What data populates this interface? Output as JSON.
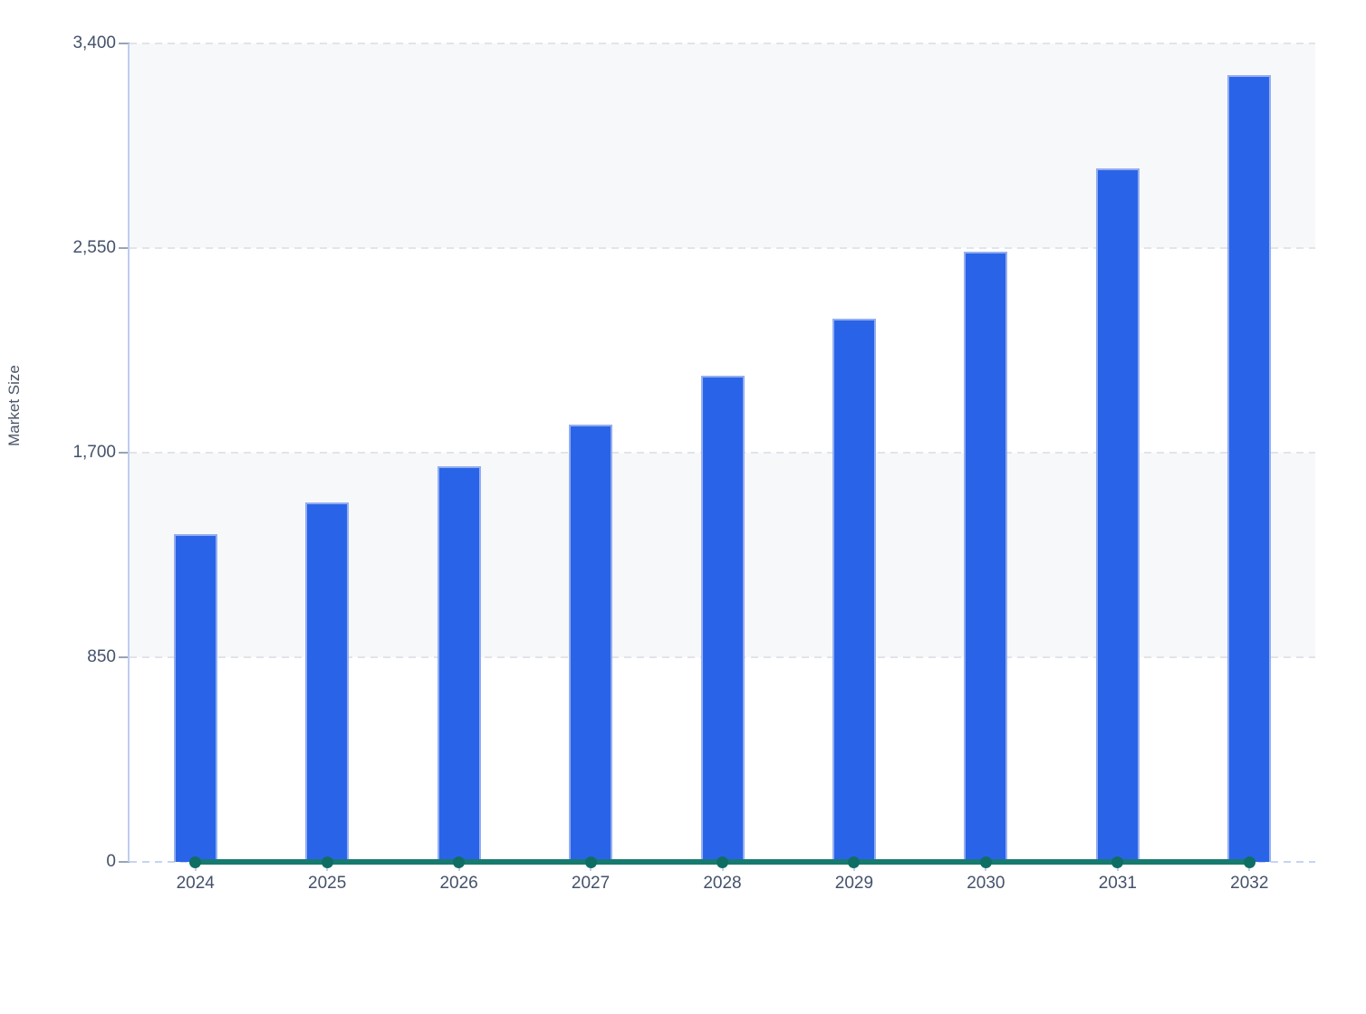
{
  "chart_data": {
    "type": "bar",
    "title": "",
    "xlabel": "",
    "ylabel": "Market Size",
    "categories": [
      "2024",
      "2025",
      "2026",
      "2027",
      "2028",
      "2029",
      "2030",
      "2031",
      "2032"
    ],
    "series": [
      {
        "name": "Market Size",
        "type": "bar",
        "color": "#2964e8",
        "values": [
          1360,
          1495,
          1645,
          1815,
          2020,
          2255,
          2535,
          2880,
          3270
        ]
      },
      {
        "name": "Baseline",
        "type": "line",
        "color": "#177a6e",
        "values": [
          0,
          0,
          0,
          0,
          0,
          0,
          0,
          0,
          0
        ]
      }
    ],
    "ylim": [
      0,
      3400
    ],
    "y_ticks": [
      {
        "value": 0,
        "label": "0"
      },
      {
        "value": 850,
        "label": "850"
      },
      {
        "value": 1700,
        "label": "1,700"
      },
      {
        "value": 2550,
        "label": "2,550"
      },
      {
        "value": 3400,
        "label": "3,400"
      }
    ],
    "grid": "horizontal-dashed",
    "legend": "none",
    "plot_bands": [
      {
        "from": 2550,
        "to": 3400
      },
      {
        "from": 850,
        "to": 1700
      }
    ]
  },
  "colors": {
    "bar_fill": "#2964e8",
    "bar_border": "#94adf0",
    "line_series": "#177a6e",
    "line_dot": "#0f6e63",
    "grid_dash": "#e1e4e9",
    "baseline_dash": "#c7d3f0",
    "axis_line": "#bfcdee",
    "y_tick_mark": "#98a4b6",
    "x_tick_mark": "#bfcdee",
    "tick_text": "#45526b",
    "axis_title_text": "#4a5568",
    "band_fill": "#f7f8fa",
    "background": "#ffffff"
  }
}
